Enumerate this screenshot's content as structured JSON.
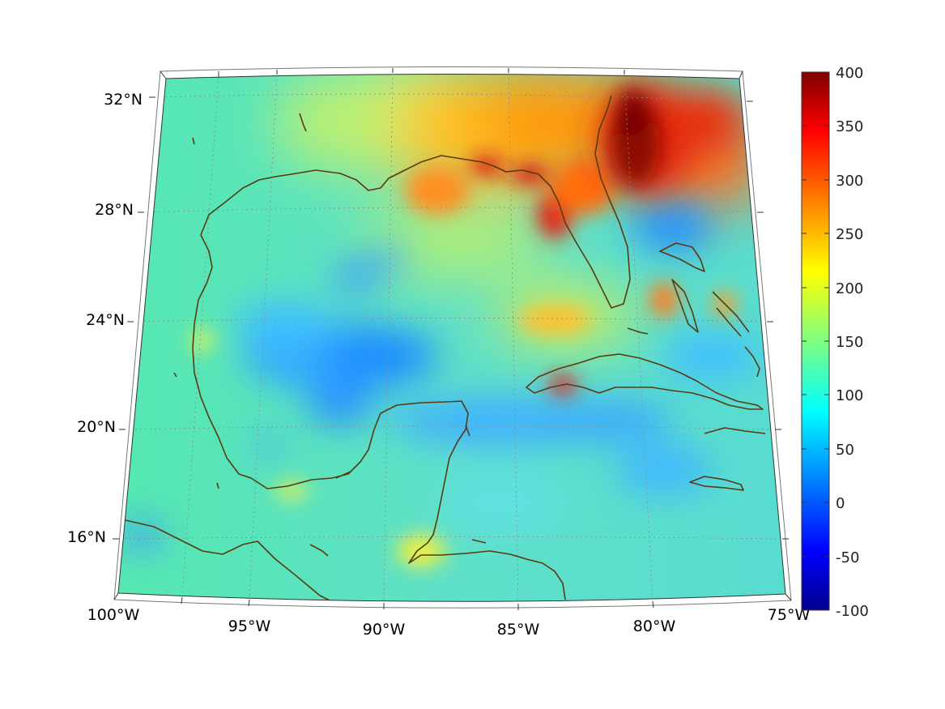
{
  "map": {
    "lon_labels": [
      "100°W",
      "95°W",
      "90°W",
      "85°W",
      "80°W",
      "75°W"
    ],
    "lat_labels": [
      "32°N",
      "28°N",
      "24°N",
      "20°N",
      "16°N"
    ],
    "extent": {
      "lon_min": -100,
      "lon_max": -75,
      "lat_min": 14,
      "lat_max": 33
    },
    "coastline_color": "#5a3a10",
    "gridline_color": "#8a8a8a"
  },
  "colorbar": {
    "ticks": [
      "400",
      "350",
      "300",
      "250",
      "200",
      "150",
      "100",
      "50",
      "0",
      "-50",
      "-100"
    ],
    "min": -100,
    "max": 400,
    "colormap": "jet",
    "colors": [
      "#00008f",
      "#0000ff",
      "#0080ff",
      "#00ffff",
      "#80ff80",
      "#ffff00",
      "#ff8000",
      "#ff0000",
      "#800000"
    ]
  }
}
